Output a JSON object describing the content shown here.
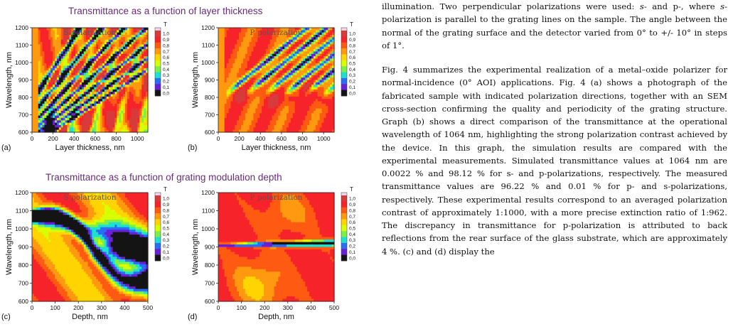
{
  "figure": {
    "row1_title": "Transmittance as a function of layer thickness",
    "row2_title": "Transmittance as a function of grating modulation depth",
    "colorbar_label": "T",
    "colorbar_ticks": [
      "1,0",
      "0,9",
      "0,8",
      "0,7",
      "0,6",
      "0,5",
      "0,4",
      "0,3",
      "0,2",
      "0,1",
      "0,0"
    ],
    "colormap": [
      "#f8d6ee",
      "#d83b3b",
      "#f6242a",
      "#ff5a12",
      "#ff9a10",
      "#ffd400",
      "#d6ff00",
      "#7cf04a",
      "#1ee0d0",
      "#2a6df5",
      "#6a1fd6",
      "#141414"
    ],
    "panels": [
      {
        "id": "a",
        "letter": "(a)",
        "pol_title": "S polarization",
        "xlabel": "Layer thickness, nm",
        "ylabel": "Wavelength, nm",
        "xticks": [
          "0",
          "200",
          "400",
          "600",
          "800",
          "1000"
        ],
        "yticks": [
          "600",
          "700",
          "800",
          "900",
          "1000",
          "1100",
          "1200"
        ],
        "chart_data": {
          "type": "heatmap",
          "x_range": [
            0,
            1100
          ],
          "y_range": [
            600,
            1200
          ],
          "zlim": [
            0,
            1
          ]
        }
      },
      {
        "id": "b",
        "letter": "(b)",
        "pol_title": "P polarization",
        "xlabel": "Layer thickness, nm",
        "ylabel": "Wavelength, nm",
        "xticks": [
          "0",
          "200",
          "400",
          "600",
          "800",
          "1000"
        ],
        "yticks": [
          "600",
          "700",
          "800",
          "900",
          "1000",
          "1100",
          "1200"
        ],
        "chart_data": {
          "type": "heatmap",
          "x_range": [
            0,
            1100
          ],
          "y_range": [
            600,
            1200
          ],
          "zlim": [
            0,
            1
          ]
        }
      },
      {
        "id": "c",
        "letter": "(c)",
        "pol_title": "S polarization",
        "xlabel": "Depth, nm",
        "ylabel": "Wavelength, nm",
        "xticks": [
          "0",
          "100",
          "200",
          "300",
          "400",
          "500"
        ],
        "yticks": [
          "600",
          "700",
          "800",
          "900",
          "1000",
          "1100",
          "1200"
        ],
        "chart_data": {
          "type": "heatmap",
          "x_range": [
            0,
            500
          ],
          "y_range": [
            600,
            1200
          ],
          "zlim": [
            0,
            1
          ]
        }
      },
      {
        "id": "d",
        "letter": "(d)",
        "pol_title": "P polarization",
        "xlabel": "Depth, nm",
        "ylabel": "Wavelength, nm",
        "xticks": [
          "0",
          "100",
          "200",
          "300",
          "400",
          "500"
        ],
        "yticks": [
          "600",
          "700",
          "800",
          "900",
          "1000",
          "1100",
          "1200"
        ],
        "chart_data": {
          "type": "heatmap",
          "x_range": [
            0,
            500
          ],
          "y_range": [
            600,
            1200
          ],
          "zlim": [
            0,
            1
          ]
        }
      }
    ]
  },
  "text": {
    "p1_a": "illumination. Two perpendicular polarizations were used: ",
    "p1_s": "s-",
    "p1_b": " and p-, where ",
    "p1_s2": "s",
    "p1_c": "-polarization is parallel to the grating lines on the sample. The angle between the normal of the grating surface and the detector varied from 0° to +/- 10° in steps of 1°.",
    "p2": "Fig. 4 summarizes the experimental realization of a metal–oxide polarizer for normal-incidence (0° AOI) applications. Fig. 4 (a) shows a photograph of the fabricated sample with indicated polarization directions, together with an SEM cross-section confirming the quality and periodicity of the grating structure. Graph (b) shows a direct comparison of the transmittance at the operational wavelength of 1064 nm, highlighting the strong polarization contrast achieved by the device. In this graph, the simulation results are compared with the experimental measurements. Simulated transmittance values at 1064 nm are 0.0022 % and 98.12 % for s- and p-polarizations, respectively. The measured transmittance values are 96.22 % and 0.01 % for p- and s-polarizations, respectively. These experimental results correspond to an averaged polarization contrast of approximately 1:1000, with a more precise extinction ratio of 1:962. The discrepancy in transmittance for p-polarization is attributed to back reflections from the rear surface of the glass substrate, which are approximately 4 %. (c) and (d) display the"
  }
}
